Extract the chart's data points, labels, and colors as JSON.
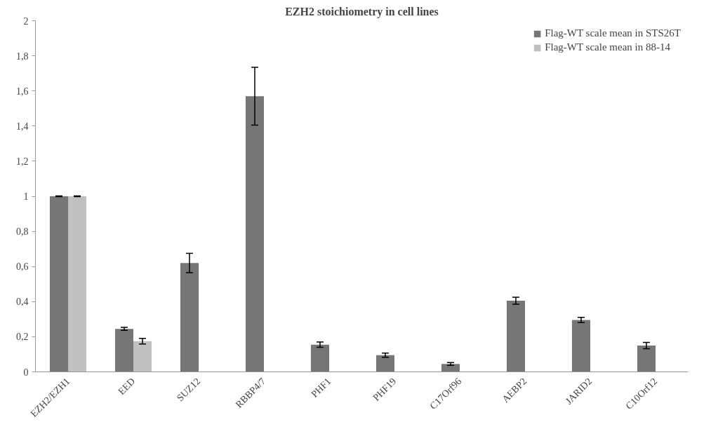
{
  "chart_data": {
    "type": "bar",
    "title": "EZH2 stoichiometry in cell lines",
    "categories": [
      "EZH2/EZH1",
      "EED",
      "SUZ12",
      "RBBP4/7",
      "PHF1",
      "PHF19",
      "C17Orf96",
      "AEBP2",
      "JARID2",
      "C10Orf12"
    ],
    "series": [
      {
        "name": "Flag-WT scale mean in STS26T",
        "color": "#767676",
        "values": [
          1,
          0.245,
          0.62,
          1.57,
          0.155,
          0.095,
          0.045,
          0.405,
          0.295,
          0.15
        ],
        "errors": [
          0.002,
          0.008,
          0.055,
          0.165,
          0.015,
          0.012,
          0.008,
          0.02,
          0.015,
          0.018
        ]
      },
      {
        "name": "Flag-WT scale mean in 88-14",
        "color": "#c0c0c0",
        "values": [
          1,
          0.175,
          0,
          0,
          0,
          0,
          0,
          0,
          0,
          0
        ],
        "errors": [
          0.002,
          0.016,
          null,
          null,
          null,
          null,
          null,
          null,
          null,
          null
        ]
      }
    ],
    "ylim": [
      0,
      2
    ],
    "yticks": [
      0,
      {
        "value": 0.2,
        "label": "0,2"
      },
      {
        "value": 0.4,
        "label": "0,4"
      },
      {
        "value": 0.6,
        "label": "0,6"
      },
      {
        "value": 0.8,
        "label": "0,8"
      },
      1,
      {
        "value": 1.2,
        "label": "1,2"
      },
      {
        "value": 1.4,
        "label": "1,4"
      },
      {
        "value": 1.6,
        "label": "1,6"
      },
      {
        "value": 1.8,
        "label": "1,8"
      },
      2
    ],
    "legend": "top right",
    "grid": false
  }
}
